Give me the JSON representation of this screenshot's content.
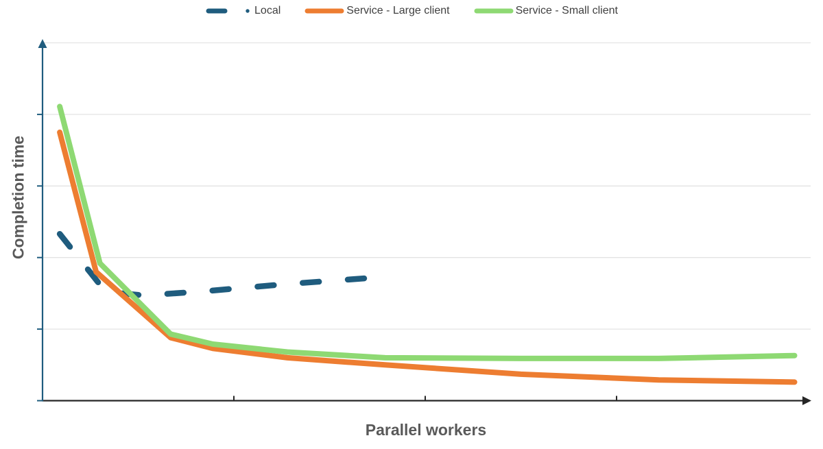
{
  "chart_data": {
    "type": "line",
    "title": "",
    "xlabel": "Parallel workers",
    "ylabel": "Completion time",
    "legend_position": "top-center",
    "grid": "horizontal-only",
    "gridline_color": "#E3E3E3",
    "axis_tick_labels_visible": false,
    "note": "Axes carry no numeric tick labels. Values are estimated in relative units: x, 1 unit = one x-axis tick interval; y, 1 unit = one horizontal gridline interval above the x-axis.",
    "xlim": [
      0,
      4.05
    ],
    "ylim": [
      0,
      5.05
    ],
    "x_axis": {
      "title": "Parallel workers",
      "color": "#262626",
      "tick_positions": [
        1,
        2,
        3
      ],
      "arrow": true
    },
    "y_axis": {
      "title": "Completion time",
      "color": "#1F5C7E",
      "gridline_positions": [
        1,
        2,
        3,
        4,
        5
      ],
      "tick_positions": [
        0,
        1,
        2,
        3,
        4
      ],
      "arrow": true
    },
    "series": [
      {
        "id": "local",
        "name": "Local",
        "color": "#1F5C7E",
        "line_style": "dashed",
        "stroke_width": 8.5,
        "dash_pattern": "24 42",
        "x": [
          0.09,
          0.33,
          0.53,
          0.85,
          1.28,
          1.79
        ],
        "y": [
          2.33,
          1.52,
          1.47,
          1.53,
          1.63,
          1.73
        ]
      },
      {
        "id": "service-large-client",
        "name": "Service - Large client",
        "color": "#ED7D31",
        "line_style": "solid",
        "stroke_width": 8,
        "x": [
          0.09,
          0.28,
          0.67,
          0.89,
          1.28,
          1.79,
          2.5,
          3.22,
          3.93
        ],
        "y": [
          3.75,
          1.8,
          0.88,
          0.73,
          0.6,
          0.5,
          0.37,
          0.29,
          0.26
        ]
      },
      {
        "id": "service-small-client",
        "name": "Service - Small client",
        "color": "#8ED973",
        "line_style": "solid",
        "stroke_width": 8,
        "x": [
          0.09,
          0.3,
          0.67,
          0.89,
          1.28,
          1.79,
          2.5,
          3.22,
          3.93
        ],
        "y": [
          4.11,
          1.92,
          0.93,
          0.79,
          0.68,
          0.6,
          0.59,
          0.59,
          0.63
        ]
      }
    ]
  }
}
